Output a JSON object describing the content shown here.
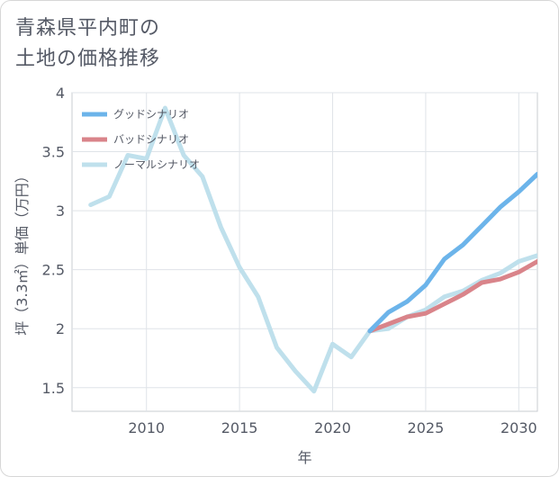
{
  "title_lines": [
    "青森県平内町の",
    "土地の価格推移"
  ],
  "chart_data": {
    "type": "line",
    "xlabel": "年",
    "ylabel": "坪（3.3㎡）単価（万円）",
    "xlim": [
      2006,
      2031
    ],
    "ylim": [
      1.3,
      4
    ],
    "x_ticks": [
      2010,
      2015,
      2020,
      2025,
      2030
    ],
    "y_ticks": [
      1.5,
      2,
      2.5,
      3,
      3.5,
      4
    ],
    "x_tick_labels": [
      "2010",
      "2015",
      "2020",
      "2025",
      "2030"
    ],
    "y_tick_labels": [
      "1.5",
      "2",
      "2.5",
      "3",
      "3.5",
      "4"
    ],
    "grid": true,
    "legend_position": "top-left",
    "series": [
      {
        "name": "グッドシナリオ",
        "color": "#6cb4ea",
        "x": [
          2022,
          2023,
          2024,
          2025,
          2026,
          2027,
          2028,
          2029,
          2030,
          2031
        ],
        "y": [
          1.98,
          2.14,
          2.23,
          2.37,
          2.59,
          2.71,
          2.87,
          3.03,
          3.16,
          3.31
        ]
      },
      {
        "name": "バッドシナリオ",
        "color": "#d9848a",
        "x": [
          2022,
          2023,
          2024,
          2025,
          2026,
          2027,
          2028,
          2029,
          2030,
          2031
        ],
        "y": [
          1.98,
          2.04,
          2.1,
          2.13,
          2.21,
          2.29,
          2.39,
          2.42,
          2.48,
          2.57
        ]
      },
      {
        "name": "ノーマルシナリオ",
        "color": "#bfe0ec",
        "x": [
          2007,
          2008,
          2009,
          2010,
          2011,
          2012,
          2013,
          2014,
          2015,
          2016,
          2017,
          2018,
          2019,
          2020,
          2021,
          2022,
          2023,
          2024,
          2025,
          2026,
          2027,
          2028,
          2029,
          2030,
          2031
        ],
        "y": [
          3.05,
          3.12,
          3.47,
          3.44,
          3.87,
          3.47,
          3.29,
          2.86,
          2.52,
          2.27,
          1.84,
          1.64,
          1.47,
          1.87,
          1.76,
          1.98,
          2.0,
          2.1,
          2.16,
          2.27,
          2.32,
          2.41,
          2.47,
          2.57,
          2.62
        ]
      }
    ]
  }
}
